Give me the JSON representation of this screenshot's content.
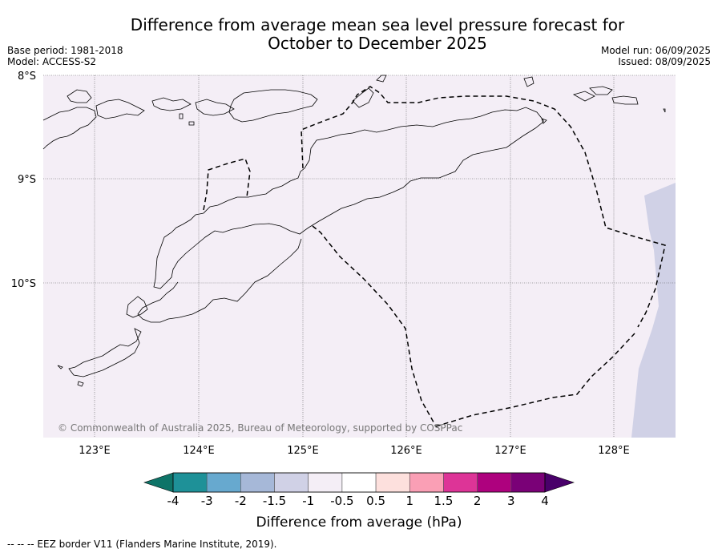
{
  "title_line1": "Difference from average mean sea level pressure forecast for",
  "title_line2": "October to December 2025",
  "base_period": "Base period: 1981-2018",
  "model": "Model: ACCESS-S2",
  "model_run": "Model run: 06/09/2025",
  "issued": "Issued: 08/09/2025",
  "copyright": "© Commonwealth of Australia 2025, Bureau of Meteorology, supported by COSPPac",
  "map": {
    "lat_labels": [
      "8°S",
      "9°S",
      "10°S"
    ],
    "lon_labels": [
      "123°E",
      "124°E",
      "125°E",
      "126°E",
      "127°E",
      "128°E"
    ]
  },
  "colorbar": {
    "label": "Difference from average (hPa)",
    "ticks": [
      "-4",
      "-3",
      "-2",
      "-1.5",
      "-1",
      "-0.5",
      "0.5",
      "1",
      "1.5",
      "2",
      "3",
      "4"
    ],
    "colors": [
      "#0e7468",
      "#1e9198",
      "#67a9cf",
      "#a6b8d8",
      "#d0d1e6",
      "#f4eef6",
      "#ffffff",
      "#fde0dd",
      "#fa9fb5",
      "#dd3497",
      "#ae017e",
      "#7a0177",
      "#49006a"
    ]
  },
  "footer": "--  --  -- EEZ border V11 (Flanders Marine Institute, 2019)."
}
